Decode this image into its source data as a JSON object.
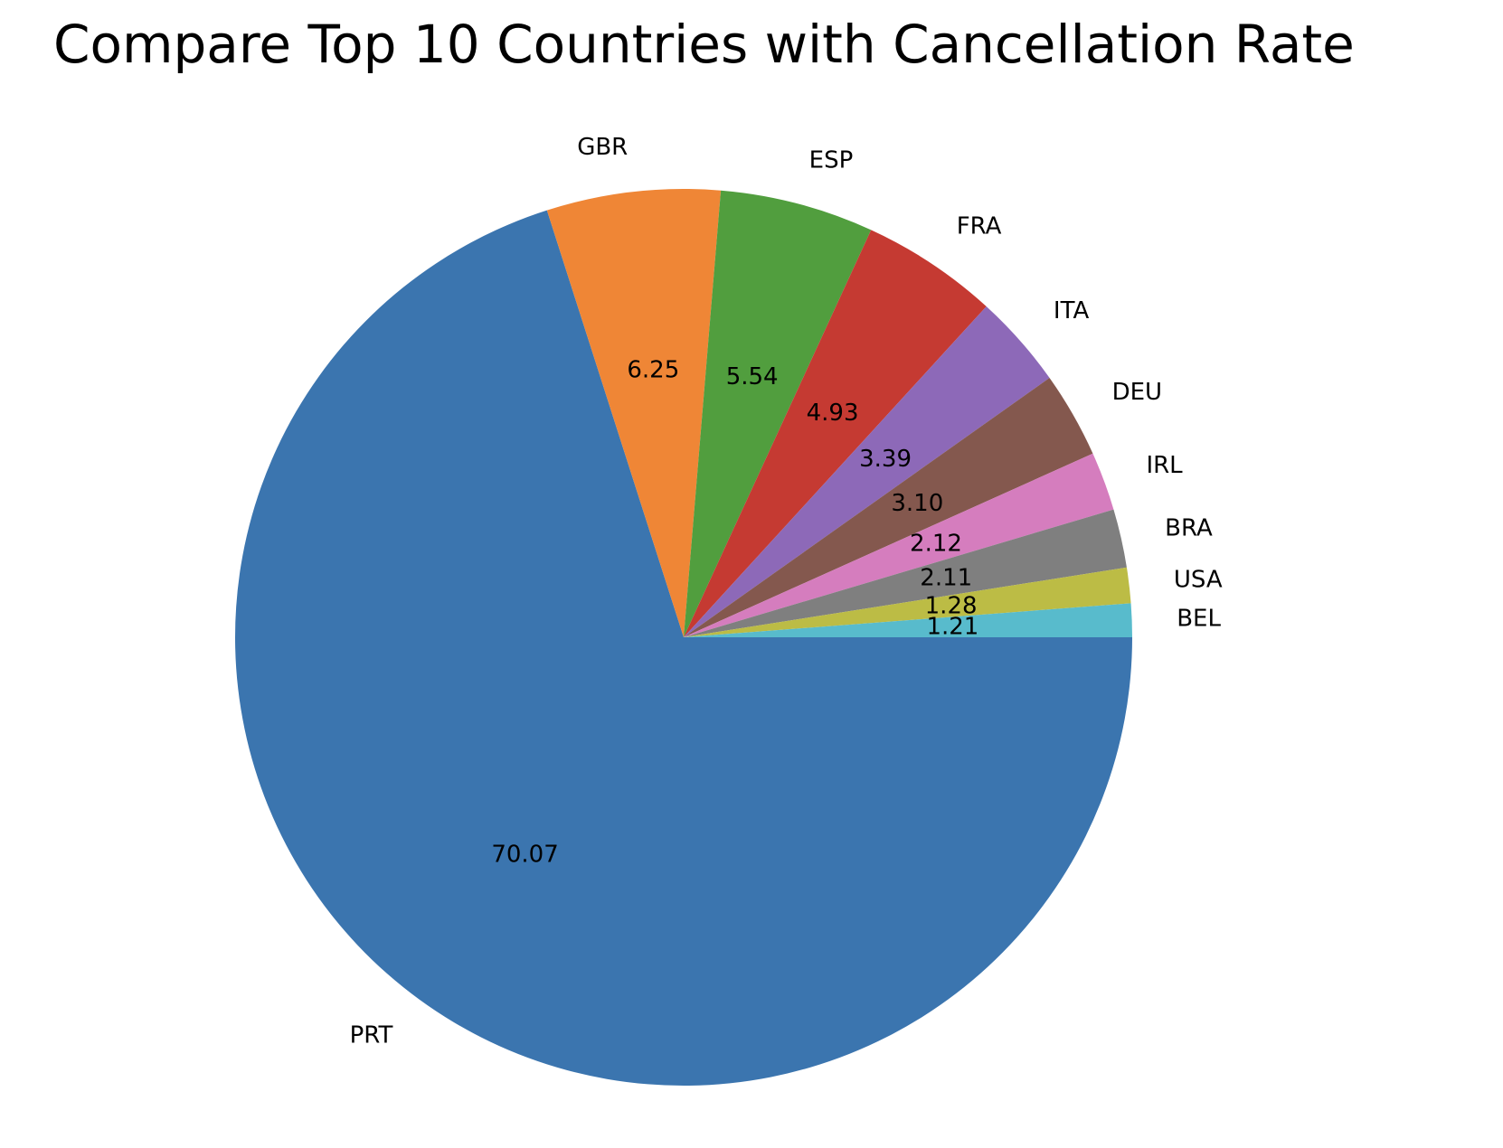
{
  "chart_data": {
    "type": "pie",
    "title": "Compare Top 10 Countries with Cancellation Rate",
    "start_angle_deg": 0,
    "direction": "clockwise",
    "labels": [
      "PRT",
      "GBR",
      "ESP",
      "FRA",
      "ITA",
      "DEU",
      "IRL",
      "BRA",
      "USA",
      "BEL"
    ],
    "values": [
      70.07,
      6.25,
      5.54,
      4.93,
      3.39,
      3.1,
      2.12,
      2.11,
      1.28,
      1.21
    ],
    "value_labels": [
      "70.07",
      "6.25",
      "5.54",
      "4.93",
      "3.39",
      "3.10",
      "2.12",
      "2.11",
      "1.28",
      "1.21"
    ],
    "colors": [
      "#3b75af",
      "#ef8636",
      "#519e3e",
      "#c53a32",
      "#8d69b8",
      "#84584e",
      "#d57dbe",
      "#7f7f7f",
      "#bcbc45",
      "#58bbcc"
    ]
  }
}
